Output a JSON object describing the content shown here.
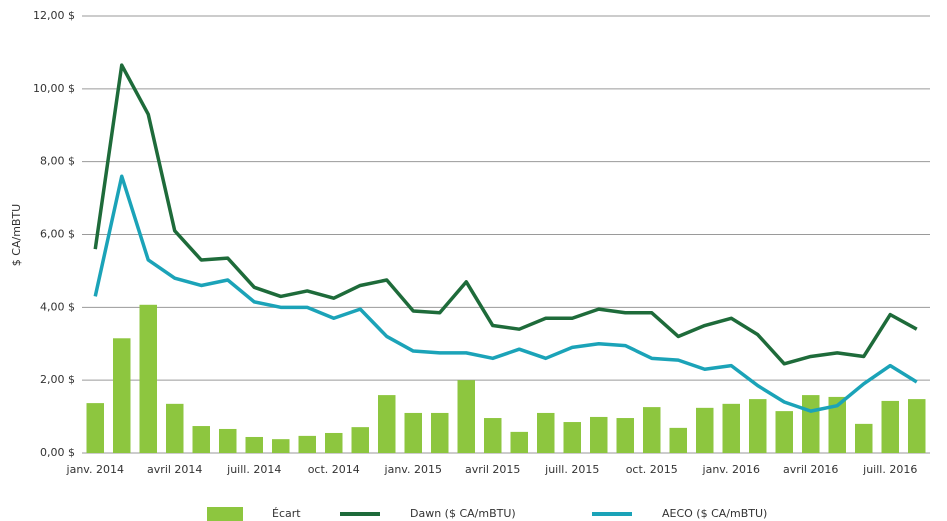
{
  "chart_data": {
    "type": "bar-line",
    "y_label": "$ CA/mBTU",
    "categories": [
      "janv. 2014",
      null,
      null,
      "avril 2014",
      null,
      null,
      "juill. 2014",
      null,
      null,
      "oct. 2014",
      null,
      null,
      "janv. 2015",
      null,
      null,
      "avril 2015",
      null,
      null,
      "juill. 2015",
      null,
      null,
      "oct. 2015",
      null,
      null,
      "janv. 2016",
      null,
      null,
      "avril 2016",
      null,
      null,
      "juill. 2016",
      null
    ],
    "series": [
      {
        "name": "Écart",
        "type": "bar",
        "color": "#8dc63f",
        "values": [
          1.37,
          3.15,
          4.07,
          1.35,
          0.74,
          0.66,
          0.44,
          0.38,
          0.47,
          0.55,
          0.71,
          1.59,
          1.1,
          1.1,
          2.0,
          0.96,
          0.58,
          1.1,
          0.85,
          0.99,
          0.96,
          1.26,
          0.69,
          1.24,
          1.35,
          1.48,
          1.15,
          1.59,
          1.54,
          0.8,
          1.43,
          1.48
        ]
      },
      {
        "name": "Dawn ($ CA/mBTU)",
        "type": "line",
        "color": "#1e6b3a",
        "values": [
          5.6,
          10.65,
          9.3,
          6.1,
          5.3,
          5.35,
          4.55,
          4.3,
          4.45,
          4.25,
          4.6,
          4.75,
          3.9,
          3.85,
          4.7,
          3.5,
          3.4,
          3.7,
          3.7,
          3.95,
          3.85,
          3.85,
          3.2,
          3.5,
          3.7,
          3.25,
          2.45,
          2.65,
          2.75,
          2.65,
          3.8,
          3.4
        ]
      },
      {
        "name": "AECO ($ CA/mBTU)",
        "type": "line",
        "color": "#1ba3b8",
        "values": [
          4.3,
          7.6,
          5.3,
          4.8,
          4.6,
          4.75,
          4.15,
          4.0,
          4.0,
          3.7,
          3.95,
          3.2,
          2.8,
          2.75,
          2.75,
          2.6,
          2.85,
          2.6,
          2.9,
          3.0,
          2.95,
          2.6,
          2.55,
          2.3,
          2.4,
          1.85,
          1.4,
          1.15,
          1.3,
          1.9,
          2.4,
          1.95
        ]
      }
    ],
    "ylim": [
      0,
      12
    ],
    "yticks": [
      {
        "value": 0,
        "label": "0,00 $"
      },
      {
        "value": 2,
        "label": "2,00 $"
      },
      {
        "value": 4,
        "label": "4,00 $"
      },
      {
        "value": 6,
        "label": "6,00 $"
      },
      {
        "value": 8,
        "label": "8,00 $"
      },
      {
        "value": 10,
        "label": "10,00 $"
      },
      {
        "value": 12,
        "label": "12,00 $"
      }
    ],
    "grid": true,
    "legend": "bottom"
  }
}
